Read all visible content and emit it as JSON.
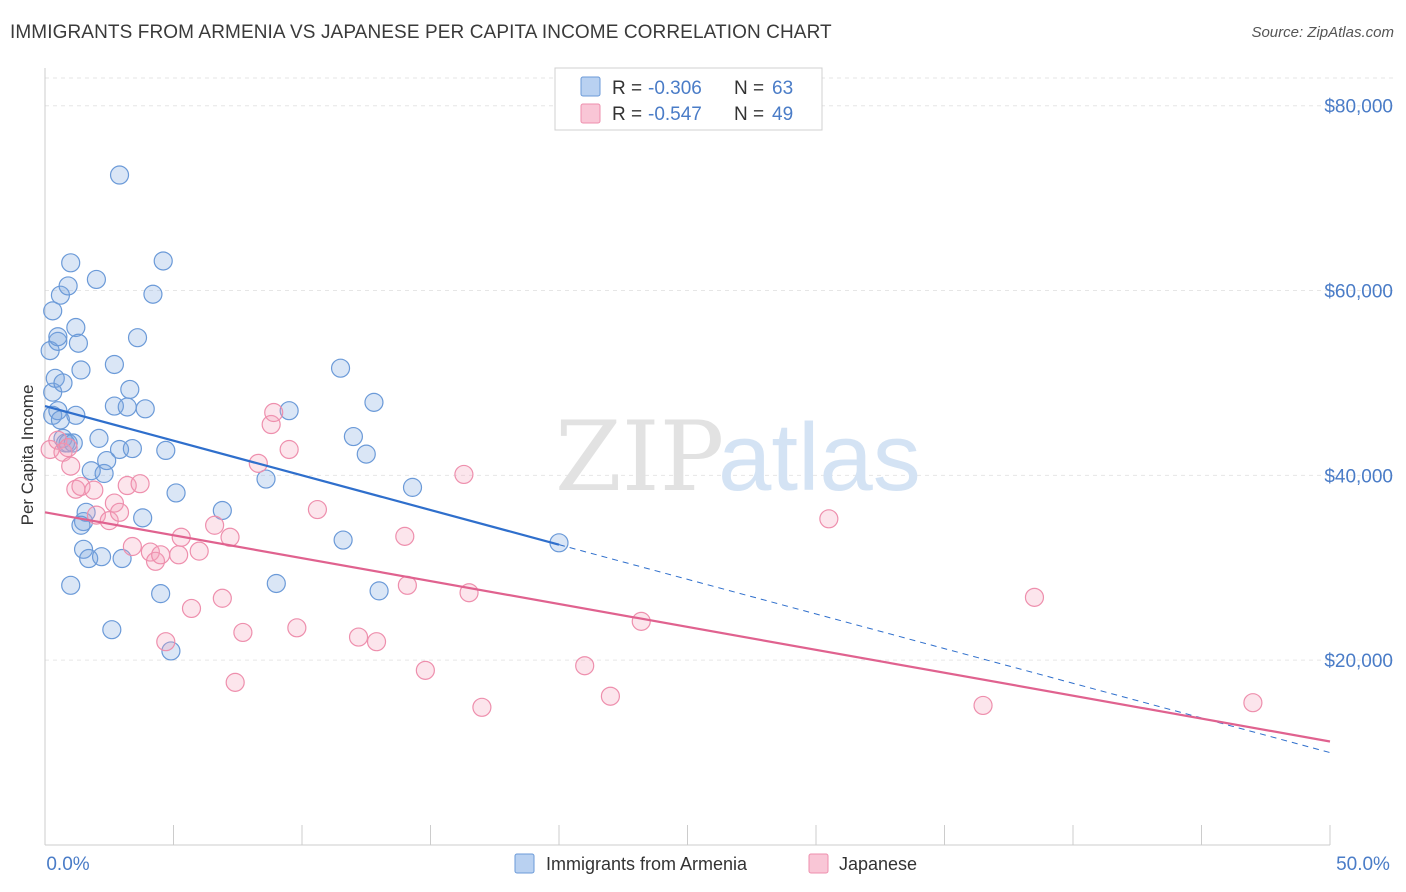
{
  "title": "IMMIGRANTS FROM ARMENIA VS JAPANESE PER CAPITA INCOME CORRELATION CHART",
  "source": "Source: ZipAtlas.com",
  "watermark": {
    "zip": "ZIP",
    "atlas": "atlas"
  },
  "chart_data": {
    "type": "scatter",
    "ylabel": "Per Capita Income",
    "xlim": [
      0,
      50
    ],
    "ylim": [
      0,
      83000
    ],
    "x_tick_labels": [
      "0.0%",
      "50.0%"
    ],
    "y_ticks": [
      20000,
      40000,
      60000,
      80000
    ],
    "y_tick_labels": [
      "$20,000",
      "$40,000",
      "$60,000",
      "$80,000"
    ],
    "grid": true,
    "legend_stats": [
      {
        "r_label": "R =",
        "r_value": "-0.306",
        "n_label": "N =",
        "n_value": "63"
      },
      {
        "r_label": "R =",
        "r_value": "-0.547",
        "n_label": "N =",
        "n_value": "49"
      }
    ],
    "series": [
      {
        "name": "Immigrants from Armenia",
        "color": "#7aa6e0",
        "trend": {
          "x0": 0,
          "y0": 47500,
          "x1": 20,
          "y1": 32500,
          "dash_to_x": 50,
          "dash_to_y": 10000
        },
        "points": [
          [
            0.2,
            53500
          ],
          [
            0.3,
            57800
          ],
          [
            0.3,
            49000
          ],
          [
            0.3,
            46500
          ],
          [
            0.4,
            50500
          ],
          [
            0.5,
            54500
          ],
          [
            0.5,
            55000
          ],
          [
            0.5,
            47000
          ],
          [
            0.6,
            59500
          ],
          [
            0.6,
            46000
          ],
          [
            0.7,
            44000
          ],
          [
            0.7,
            50000
          ],
          [
            0.8,
            43500
          ],
          [
            0.9,
            43500
          ],
          [
            0.9,
            60500
          ],
          [
            1.0,
            63000
          ],
          [
            1.1,
            43500
          ],
          [
            1.2,
            56000
          ],
          [
            1.2,
            46500
          ],
          [
            1.3,
            54300
          ],
          [
            1.4,
            51400
          ],
          [
            1.5,
            35000
          ],
          [
            1.5,
            32000
          ],
          [
            1.6,
            36000
          ],
          [
            1.7,
            31000
          ],
          [
            1.8,
            40500
          ],
          [
            2.0,
            61200
          ],
          [
            2.1,
            44000
          ],
          [
            2.2,
            31200
          ],
          [
            2.3,
            40200
          ],
          [
            2.4,
            41600
          ],
          [
            2.7,
            47500
          ],
          [
            2.7,
            52000
          ],
          [
            2.9,
            42800
          ],
          [
            2.9,
            72500
          ],
          [
            3.2,
            47400
          ],
          [
            3.3,
            49300
          ],
          [
            3.4,
            42900
          ],
          [
            3.6,
            54900
          ],
          [
            3.8,
            35400
          ],
          [
            3.9,
            47200
          ],
          [
            4.2,
            59600
          ],
          [
            4.6,
            63200
          ],
          [
            4.7,
            42700
          ],
          [
            4.9,
            21000
          ],
          [
            5.1,
            38100
          ],
          [
            6.9,
            36200
          ],
          [
            8.6,
            39600
          ],
          [
            9.0,
            28300
          ],
          [
            9.5,
            47000
          ],
          [
            11.5,
            51600
          ],
          [
            11.6,
            33000
          ],
          [
            12.0,
            44200
          ],
          [
            12.5,
            42300
          ],
          [
            12.8,
            47900
          ],
          [
            13.0,
            27500
          ],
          [
            14.3,
            38700
          ],
          [
            20.0,
            32700
          ],
          [
            2.6,
            23300
          ],
          [
            1.0,
            28100
          ],
          [
            4.5,
            27200
          ],
          [
            3.0,
            31000
          ],
          [
            1.4,
            34600
          ]
        ]
      },
      {
        "name": "Japanese",
        "color": "#f4a3bc",
        "trend": {
          "x0": 0,
          "y0": 36000,
          "x1": 50,
          "y1": 11200
        },
        "points": [
          [
            0.2,
            42800
          ],
          [
            0.5,
            43800
          ],
          [
            0.7,
            42500
          ],
          [
            0.9,
            43000
          ],
          [
            1.0,
            41000
          ],
          [
            1.2,
            38500
          ],
          [
            1.4,
            38800
          ],
          [
            1.9,
            38400
          ],
          [
            2.0,
            35700
          ],
          [
            2.5,
            35100
          ],
          [
            2.7,
            37000
          ],
          [
            2.9,
            36000
          ],
          [
            3.2,
            38900
          ],
          [
            3.4,
            32300
          ],
          [
            3.7,
            39100
          ],
          [
            4.1,
            31700
          ],
          [
            4.3,
            30700
          ],
          [
            4.5,
            31400
          ],
          [
            4.7,
            22000
          ],
          [
            5.2,
            31400
          ],
          [
            5.3,
            33300
          ],
          [
            5.7,
            25600
          ],
          [
            6.0,
            31800
          ],
          [
            6.6,
            34600
          ],
          [
            6.9,
            26700
          ],
          [
            7.2,
            33300
          ],
          [
            7.4,
            17600
          ],
          [
            7.7,
            23000
          ],
          [
            8.3,
            41300
          ],
          [
            8.8,
            45500
          ],
          [
            8.9,
            46800
          ],
          [
            9.5,
            42800
          ],
          [
            9.8,
            23500
          ],
          [
            10.6,
            36300
          ],
          [
            12.2,
            22500
          ],
          [
            12.9,
            22000
          ],
          [
            14.0,
            33400
          ],
          [
            14.1,
            28100
          ],
          [
            14.8,
            18900
          ],
          [
            16.3,
            40100
          ],
          [
            16.5,
            27300
          ],
          [
            17.0,
            14900
          ],
          [
            21.0,
            19400
          ],
          [
            22.0,
            16100
          ],
          [
            23.2,
            24200
          ],
          [
            30.5,
            35300
          ],
          [
            36.5,
            15100
          ],
          [
            38.5,
            26800
          ],
          [
            47.0,
            15400
          ]
        ]
      }
    ]
  }
}
